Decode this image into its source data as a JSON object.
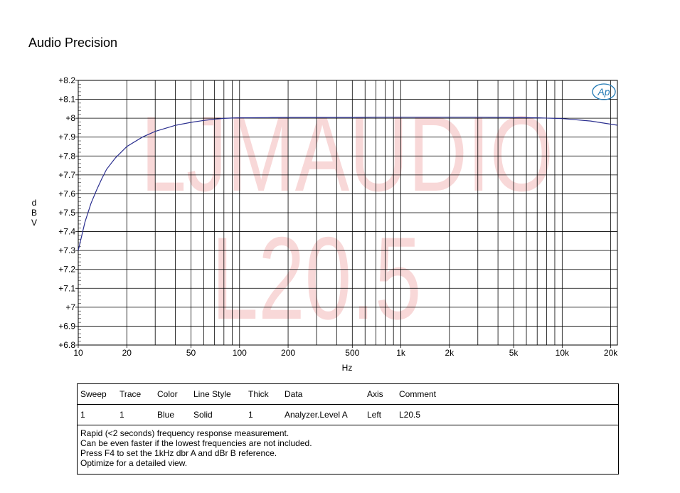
{
  "window": {
    "title": "Audio Precision"
  },
  "logo": {
    "text": "Ap"
  },
  "watermark": {
    "line1": "LJMAUDIO",
    "line2": "L20.5"
  },
  "colors": {
    "trace": "#2b2f8f",
    "grid": "#000000",
    "watermark": "#f2b8b8",
    "logo": "#1f78b4"
  },
  "chart_data": {
    "type": "line",
    "title": "",
    "xlabel": "Hz",
    "ylabel": "dBV",
    "xscale": "log",
    "xlim": [
      10,
      22000
    ],
    "ylim": [
      6.8,
      8.2
    ],
    "grid": true,
    "x_ticks": [
      {
        "value": 10,
        "label": "10"
      },
      {
        "value": 20,
        "label": "20"
      },
      {
        "value": 50,
        "label": "50"
      },
      {
        "value": 100,
        "label": "100"
      },
      {
        "value": 200,
        "label": "200"
      },
      {
        "value": 500,
        "label": "500"
      },
      {
        "value": 1000,
        "label": "1k"
      },
      {
        "value": 2000,
        "label": "2k"
      },
      {
        "value": 5000,
        "label": "5k"
      },
      {
        "value": 10000,
        "label": "10k"
      },
      {
        "value": 20000,
        "label": "20k"
      }
    ],
    "y_ticks": [
      {
        "value": 8.2,
        "label": "+8.2"
      },
      {
        "value": 8.1,
        "label": "+8.1"
      },
      {
        "value": 8.0,
        "label": "+8"
      },
      {
        "value": 7.9,
        "label": "+7.9"
      },
      {
        "value": 7.8,
        "label": "+7.8"
      },
      {
        "value": 7.7,
        "label": "+7.7"
      },
      {
        "value": 7.6,
        "label": "+7.6"
      },
      {
        "value": 7.5,
        "label": "+7.5"
      },
      {
        "value": 7.4,
        "label": "+7.4"
      },
      {
        "value": 7.3,
        "label": "+7.3"
      },
      {
        "value": 7.2,
        "label": "+7.2"
      },
      {
        "value": 7.1,
        "label": "+7.1"
      },
      {
        "value": 7.0,
        "label": "+7"
      },
      {
        "value": 6.9,
        "label": "+6.9"
      },
      {
        "value": 6.8,
        "label": "+6.8"
      }
    ],
    "series": [
      {
        "x": [
          10,
          11,
          12,
          13,
          14,
          15,
          17,
          20,
          25,
          30,
          40,
          50,
          60,
          70,
          80,
          90,
          100,
          150,
          200,
          300,
          500,
          700,
          1000,
          2000,
          3000,
          5000,
          7000,
          10000,
          15000,
          22000
        ],
        "values": [
          7.3,
          7.45,
          7.55,
          7.62,
          7.68,
          7.73,
          7.79,
          7.85,
          7.9,
          7.93,
          7.962,
          7.978,
          7.988,
          7.995,
          7.999,
          8.001,
          8.002,
          8.003,
          8.004,
          8.004,
          8.004,
          8.005,
          8.005,
          8.005,
          8.005,
          8.004,
          8.002,
          7.998,
          7.985,
          7.963
        ]
      }
    ]
  },
  "legend_table": {
    "headers": {
      "sweep": "Sweep",
      "trace": "Trace",
      "color": "Color",
      "line_style": "Line Style",
      "thick": "Thick",
      "data": "Data",
      "axis": "Axis",
      "comment": "Comment"
    },
    "rows": [
      {
        "sweep": "1",
        "trace": "1",
        "color": "Blue",
        "line_style": "Solid",
        "thick": "1",
        "data": "Analyzer.Level A",
        "axis": "Left",
        "comment": "L20.5"
      }
    ]
  },
  "comments": [
    "Rapid (<2 seconds) frequency response measurement.",
    "Can be even faster if the lowest frequencies are not included.",
    "Press F4 to set the 1kHz dbr A and dBr B reference.",
    "Optimize for a detailed view."
  ]
}
